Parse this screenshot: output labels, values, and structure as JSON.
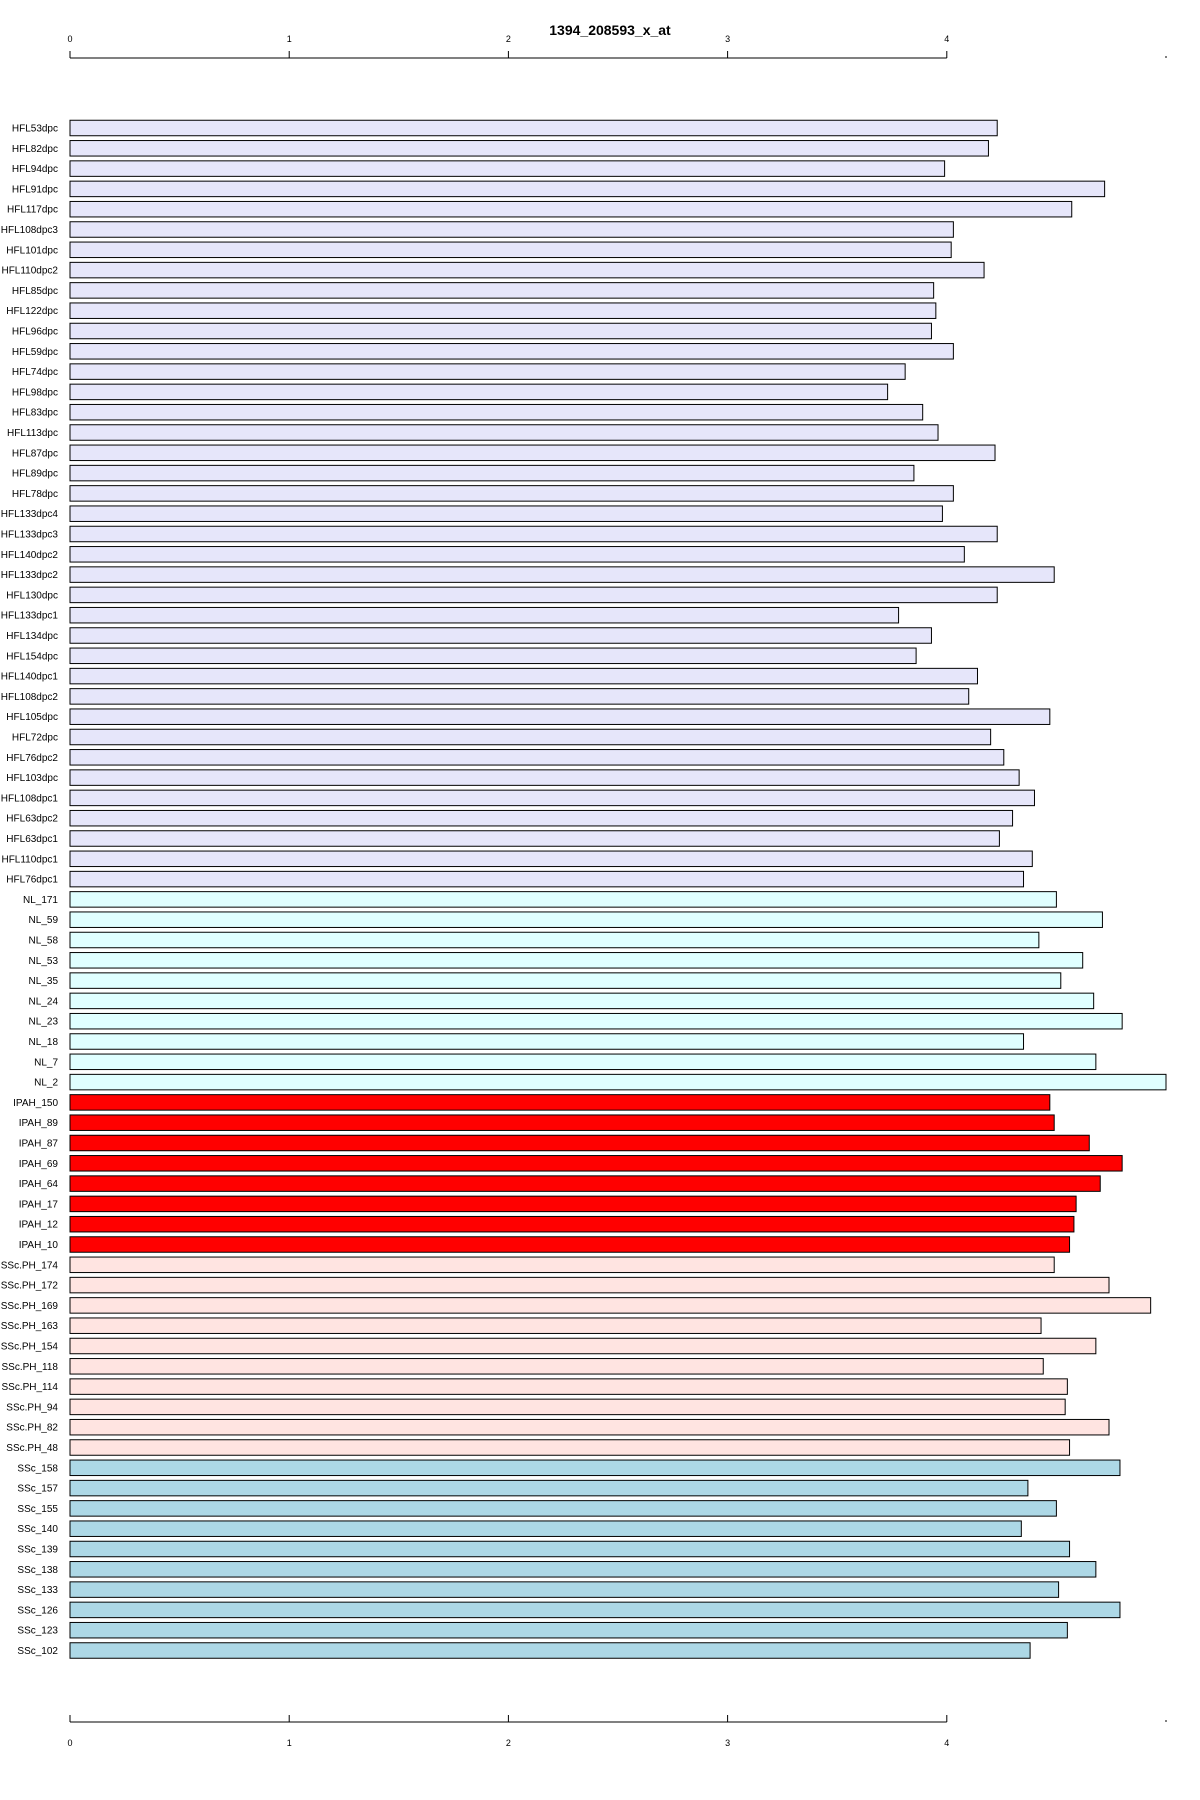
{
  "chart_data": {
    "type": "bar",
    "orientation": "horizontal",
    "title": "1394_208593_x_at",
    "xlabel": "",
    "ylabel": "",
    "xlim": [
      0,
      5
    ],
    "x_ticks": [
      0,
      1,
      2,
      3,
      4
    ],
    "axes": [
      "top",
      "bottom"
    ],
    "grid": false,
    "legend": "none",
    "group_colors": {
      "HFL": "#e6e6fa",
      "NL": "#e0ffff",
      "IPAH": "#ff0000",
      "SSc.PH": "#ffe4e1",
      "SSc": "#add8e6"
    },
    "categories": [
      "HFL53dpc",
      "HFL82dpc",
      "HFL94dpc",
      "HFL91dpc",
      "HFL117dpc",
      "HFL108dpc3",
      "HFL101dpc",
      "HFL110dpc2",
      "HFL85dpc",
      "HFL122dpc",
      "HFL96dpc",
      "HFL59dpc",
      "HFL74dpc",
      "HFL98dpc",
      "HFL83dpc",
      "HFL113dpc",
      "HFL87dpc",
      "HFL89dpc",
      "HFL78dpc",
      "HFL133dpc4",
      "HFL133dpc3",
      "HFL140dpc2",
      "HFL133dpc2",
      "HFL130dpc",
      "HFL133dpc1",
      "HFL134dpc",
      "HFL154dpc",
      "HFL140dpc1",
      "HFL108dpc2",
      "HFL105dpc",
      "HFL72dpc",
      "HFL76dpc2",
      "HFL103dpc",
      "HFL108dpc1",
      "HFL63dpc2",
      "HFL63dpc1",
      "HFL110dpc1",
      "HFL76dpc1",
      "NL_171",
      "NL_59",
      "NL_58",
      "NL_53",
      "NL_35",
      "NL_24",
      "NL_23",
      "NL_18",
      "NL_7",
      "NL_2",
      "IPAH_150",
      "IPAH_89",
      "IPAH_87",
      "IPAH_69",
      "IPAH_64",
      "IPAH_17",
      "IPAH_12",
      "IPAH_10",
      "SSc.PH_174",
      "SSc.PH_172",
      "SSc.PH_169",
      "SSc.PH_163",
      "SSc.PH_154",
      "SSc.PH_118",
      "SSc.PH_114",
      "SSc.PH_94",
      "SSc.PH_82",
      "SSc.PH_48",
      "SSc_158",
      "SSc_157",
      "SSc_155",
      "SSc_140",
      "SSc_139",
      "SSc_138",
      "SSc_133",
      "SSc_126",
      "SSc_123",
      "SSc_102"
    ],
    "groups": [
      "HFL",
      "HFL",
      "HFL",
      "HFL",
      "HFL",
      "HFL",
      "HFL",
      "HFL",
      "HFL",
      "HFL",
      "HFL",
      "HFL",
      "HFL",
      "HFL",
      "HFL",
      "HFL",
      "HFL",
      "HFL",
      "HFL",
      "HFL",
      "HFL",
      "HFL",
      "HFL",
      "HFL",
      "HFL",
      "HFL",
      "HFL",
      "HFL",
      "HFL",
      "HFL",
      "HFL",
      "HFL",
      "HFL",
      "HFL",
      "HFL",
      "HFL",
      "HFL",
      "HFL",
      "NL",
      "NL",
      "NL",
      "NL",
      "NL",
      "NL",
      "NL",
      "NL",
      "NL",
      "NL",
      "IPAH",
      "IPAH",
      "IPAH",
      "IPAH",
      "IPAH",
      "IPAH",
      "IPAH",
      "IPAH",
      "SSc.PH",
      "SSc.PH",
      "SSc.PH",
      "SSc.PH",
      "SSc.PH",
      "SSc.PH",
      "SSc.PH",
      "SSc.PH",
      "SSc.PH",
      "SSc.PH",
      "SSc",
      "SSc",
      "SSc",
      "SSc",
      "SSc",
      "SSc",
      "SSc",
      "SSc",
      "SSc",
      "SSc"
    ],
    "values": [
      4.23,
      4.19,
      3.99,
      4.72,
      4.57,
      4.03,
      4.02,
      4.17,
      3.94,
      3.95,
      3.93,
      4.03,
      3.81,
      3.73,
      3.89,
      3.96,
      4.22,
      3.85,
      4.03,
      3.98,
      4.23,
      4.08,
      4.49,
      4.23,
      3.78,
      3.93,
      3.86,
      4.14,
      4.1,
      4.47,
      4.2,
      4.26,
      4.33,
      4.4,
      4.3,
      4.24,
      4.39,
      4.35,
      4.5,
      4.71,
      4.42,
      4.62,
      4.52,
      4.67,
      4.8,
      4.35,
      4.68,
      5.0,
      4.47,
      4.49,
      4.65,
      4.8,
      4.7,
      4.59,
      4.58,
      4.56,
      4.49,
      4.74,
      4.93,
      4.43,
      4.68,
      4.44,
      4.55,
      4.54,
      4.74,
      4.56,
      4.79,
      4.37,
      4.5,
      4.34,
      4.56,
      4.68,
      4.51,
      4.79,
      4.55,
      4.38
    ]
  }
}
